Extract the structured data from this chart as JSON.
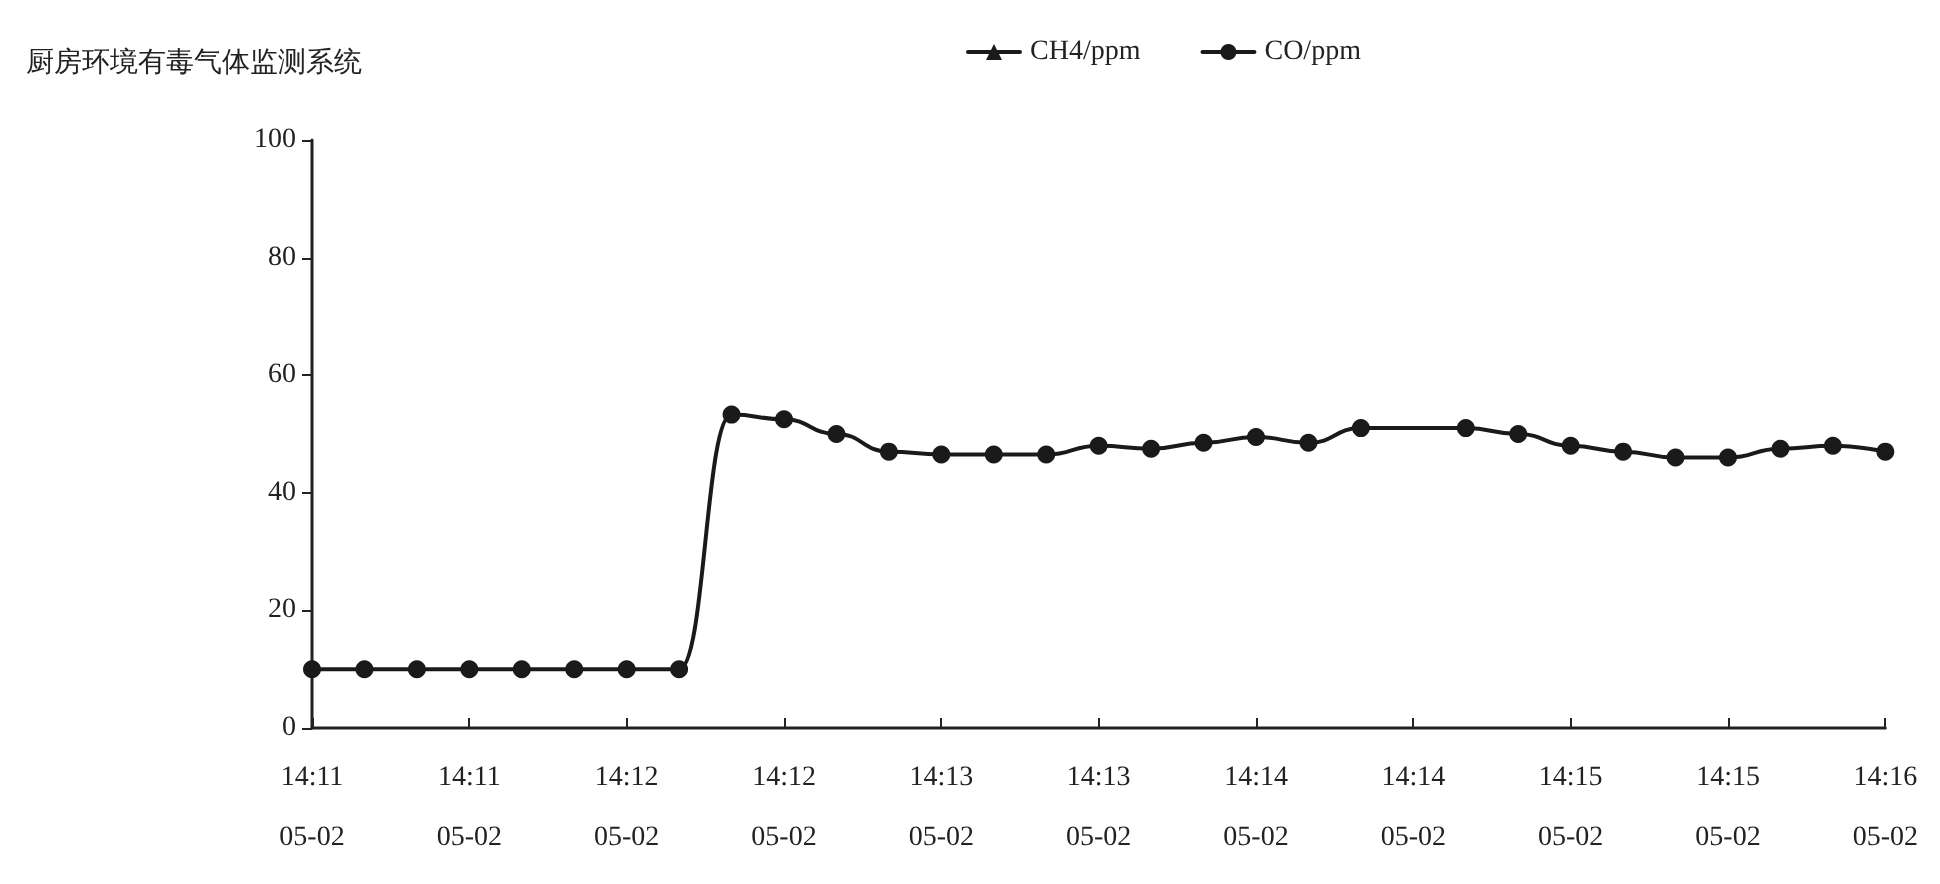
{
  "chart_data": {
    "type": "line",
    "title": "厨房环境有毒气体监测系统",
    "categories": [
      "14:11\n05-02",
      null,
      null,
      "14:11\n05-02",
      null,
      null,
      "14:12\n05-02",
      null,
      null,
      "14:12\n05-02",
      null,
      null,
      "14:13\n05-02",
      null,
      null,
      "14:13\n05-02",
      null,
      null,
      "14:14\n05-02",
      null,
      null,
      "14:14\n05-02",
      null,
      null,
      "14:15\n05-02",
      null,
      null,
      "14:15\n05-02",
      null,
      null,
      "14:16\n05-02"
    ],
    "series": [
      {
        "name": "CH4/ppm",
        "color": "#1a1a1a",
        "marker": "triangle",
        "values": [
          null,
          null,
          null,
          null,
          null,
          null,
          null,
          null,
          null,
          null,
          null,
          null,
          null,
          null,
          null,
          null,
          null,
          null,
          null,
          null,
          null,
          null,
          null,
          null,
          null,
          null,
          null,
          null,
          null,
          null,
          null
        ]
      },
      {
        "name": "CO/ppm",
        "color": "#1a1a1a",
        "marker": "circle",
        "values": [
          10,
          10,
          10,
          10,
          10,
          10,
          10,
          10,
          53.3,
          52.5,
          50,
          47,
          46.5,
          46.5,
          46.5,
          48,
          47.5,
          48.5,
          49.5,
          48.5,
          51,
          null,
          51,
          50,
          48,
          47,
          46,
          46,
          47.5,
          48,
          47
        ]
      }
    ],
    "ylim": [
      0,
      100
    ],
    "yticks": [
      0,
      20,
      40,
      60,
      80,
      100
    ],
    "grid": false,
    "legend": "top",
    "line_style": "solid"
  }
}
